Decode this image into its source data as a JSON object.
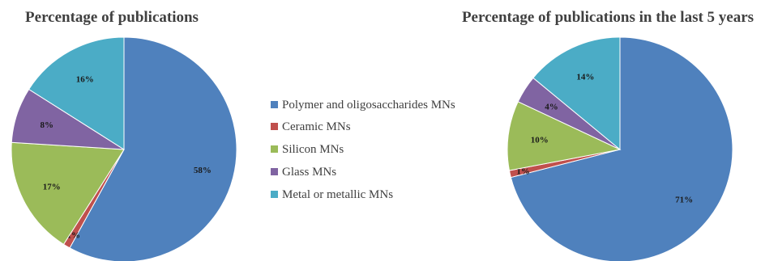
{
  "legend": {
    "items": [
      {
        "label": "Polymer and oligosaccharides MNs",
        "color": "#4F81BD"
      },
      {
        "label": "Ceramic MNs",
        "color": "#C0504D"
      },
      {
        "label": "Silicon MNs",
        "color": "#9BBB59"
      },
      {
        "label": "Glass MNs",
        "color": "#8064A2"
      },
      {
        "label": "Metal or metallic MNs",
        "color": "#4BACC6"
      }
    ]
  },
  "chart_data": [
    {
      "type": "pie",
      "title": "Percentage of publications",
      "categories": [
        "Polymer and oligosaccharides MNs",
        "Ceramic MNs",
        "Silicon MNs",
        "Glass MNs",
        "Metal or metallic MNs"
      ],
      "values": [
        58,
        1,
        17,
        8,
        16
      ],
      "labels": [
        "58%",
        "1%",
        "17%",
        "8%",
        "16%"
      ],
      "colors": [
        "#4F81BD",
        "#C0504D",
        "#9BBB59",
        "#8064A2",
        "#4BACC6"
      ],
      "legend": "center"
    },
    {
      "type": "pie",
      "title": "Percentage of publications in the last 5 years",
      "categories": [
        "Polymer and oligosaccharides MNs",
        "Ceramic MNs",
        "Silicon MNs",
        "Glass MNs",
        "Metal or metallic MNs"
      ],
      "values": [
        71,
        1,
        10,
        4,
        14
      ],
      "labels": [
        "71%",
        "1%",
        "10%",
        "4%",
        "14%"
      ],
      "colors": [
        "#4F81BD",
        "#C0504D",
        "#9BBB59",
        "#8064A2",
        "#4BACC6"
      ],
      "legend": "center"
    }
  ]
}
